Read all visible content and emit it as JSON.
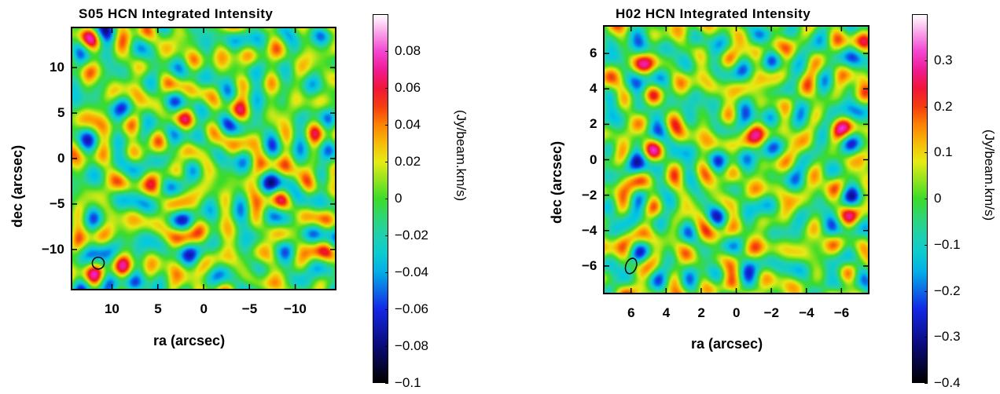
{
  "chart_data": [
    {
      "type": "heatmap",
      "title": "S05 HCN Integrated Intensity",
      "xlabel": "ra (arcsec)",
      "ylabel": "dec (arcsec)",
      "colorbar_label": "(Jy/beam.km/s)",
      "xlim": [
        14.5,
        -14.5
      ],
      "ylim": [
        -14.5,
        14.5
      ],
      "x_ticks": [
        "10",
        "5",
        "0",
        "−5",
        "−10"
      ],
      "x_tick_values": [
        10,
        5,
        0,
        -5,
        -10
      ],
      "y_ticks": [
        "10",
        "5",
        "0",
        "−5",
        "−10"
      ],
      "y_tick_values": [
        10,
        5,
        0,
        -5,
        -10
      ],
      "colorbar_range": [
        -0.1,
        0.1
      ],
      "colorbar_ticks": [
        "0.08",
        "0.06",
        "0.04",
        "0.02",
        "0",
        "−0.02",
        "−0.04",
        "−0.06",
        "−0.08",
        "−0.1"
      ],
      "colorbar_tick_values": [
        0.08,
        0.06,
        0.04,
        0.02,
        0,
        -0.02,
        -0.04,
        -0.06,
        -0.08,
        -0.1
      ],
      "beam": {
        "x": 11.5,
        "y": -11.5,
        "major": 1.3,
        "minor": 1.3,
        "pa": 0
      },
      "noise_rms": 0.02,
      "seed": 5
    },
    {
      "type": "heatmap",
      "title": "H02 HCN Integrated Intensity",
      "xlabel": "ra (arcsec)",
      "ylabel": "dec (arcsec)",
      "colorbar_label": "(Jy/beam.km/s)",
      "xlim": [
        7.6,
        -7.6
      ],
      "ylim": [
        -7.6,
        7.6
      ],
      "x_ticks": [
        "6",
        "4",
        "2",
        "0",
        "−2",
        "−4",
        "−6"
      ],
      "x_tick_values": [
        6,
        4,
        2,
        0,
        -2,
        -4,
        -6
      ],
      "y_ticks": [
        "6",
        "4",
        "2",
        "0",
        "−2",
        "−4",
        "−6"
      ],
      "y_tick_values": [
        6,
        4,
        2,
        0,
        -2,
        -4,
        -6
      ],
      "colorbar_range": [
        -0.4,
        0.4
      ],
      "colorbar_ticks": [
        "0.3",
        "0.2",
        "0.1",
        "0",
        "−0.1",
        "−0.2",
        "−0.3",
        "−0.4"
      ],
      "colorbar_tick_values": [
        0.3,
        0.2,
        0.1,
        0,
        -0.1,
        -0.2,
        -0.3,
        -0.4
      ],
      "beam": {
        "x": 6.0,
        "y": -6.0,
        "major": 0.9,
        "minor": 0.6,
        "pa": 20
      },
      "noise_rms": 0.1,
      "seed": 2
    }
  ]
}
